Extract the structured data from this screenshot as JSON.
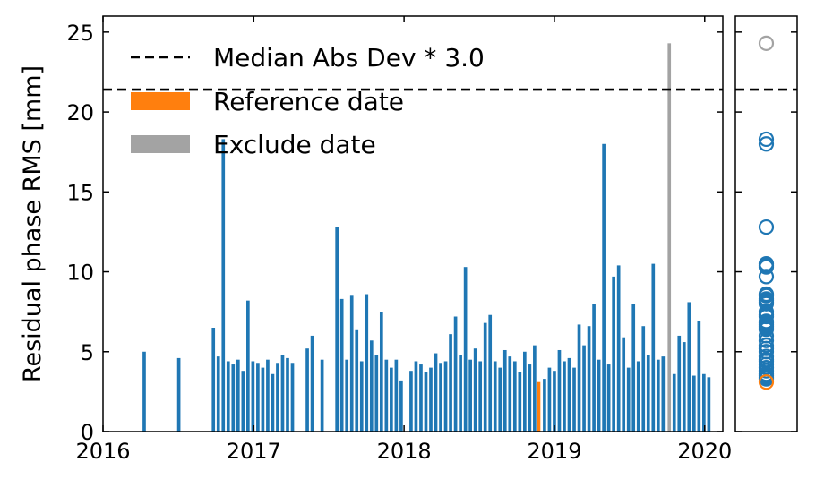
{
  "chart_data": [
    {
      "type": "bar",
      "ylabel": "Residual phase RMS [mm]",
      "xlabel": "",
      "x_range": [
        "2016-01-01",
        "2020-02-14"
      ],
      "ylim": [
        0,
        26
      ],
      "xticks": [
        "2016",
        "2017",
        "2018",
        "2019",
        "2020"
      ],
      "yticks": [
        "0",
        "5",
        "10",
        "15",
        "20",
        "25"
      ],
      "legend_position": "top-left",
      "threshold": {
        "label": "Median Abs Dev * 3.0",
        "value": 21.4
      },
      "colors": {
        "normal": "#1f77b4",
        "reference": "#ff7f0e",
        "exclude": "#a3a3a3",
        "threshold": "#000000"
      },
      "series": [
        {
          "name": "Reference date",
          "color": "#ff7f0e",
          "dates": [
            "2018-11-24"
          ],
          "values": [
            3.1
          ]
        },
        {
          "name": "Exclude date",
          "color": "#a3a3a3",
          "dates": [
            "2019-10-07"
          ],
          "values": [
            24.3
          ]
        }
      ],
      "bars": {
        "dates": [
          "2016-04-10",
          "2016-07-03",
          "2016-09-25",
          "2016-10-07",
          "2016-10-19",
          "2016-10-31",
          "2016-11-12",
          "2016-11-24",
          "2016-12-06",
          "2016-12-18",
          "2016-12-30",
          "2017-01-11",
          "2017-01-23",
          "2017-02-04",
          "2017-02-16",
          "2017-02-28",
          "2017-03-12",
          "2017-03-24",
          "2017-04-05",
          "2017-05-11",
          "2017-05-23",
          "2017-06-16",
          "2017-07-22",
          "2017-08-03",
          "2017-08-15",
          "2017-08-27",
          "2017-09-08",
          "2017-09-20",
          "2017-10-02",
          "2017-10-14",
          "2017-10-26",
          "2017-11-07",
          "2017-11-19",
          "2017-12-01",
          "2017-12-13",
          "2017-12-25",
          "2018-01-18",
          "2018-01-30",
          "2018-02-11",
          "2018-02-23",
          "2018-03-07",
          "2018-03-19",
          "2018-03-31",
          "2018-04-12",
          "2018-04-24",
          "2018-05-06",
          "2018-05-18",
          "2018-05-30",
          "2018-06-11",
          "2018-06-23",
          "2018-07-05",
          "2018-07-17",
          "2018-07-29",
          "2018-08-10",
          "2018-08-22",
          "2018-09-03",
          "2018-09-15",
          "2018-09-27",
          "2018-10-09",
          "2018-10-21",
          "2018-11-02",
          "2018-11-14",
          "2018-12-08",
          "2018-12-20",
          "2019-01-01",
          "2019-01-13",
          "2019-01-25",
          "2019-02-06",
          "2019-02-18",
          "2019-03-02",
          "2019-03-14",
          "2019-03-26",
          "2019-04-07",
          "2019-04-19",
          "2019-05-01",
          "2019-05-13",
          "2019-05-25",
          "2019-06-06",
          "2019-06-18",
          "2019-06-30",
          "2019-07-12",
          "2019-07-24",
          "2019-08-05",
          "2019-08-17",
          "2019-08-29",
          "2019-09-10",
          "2019-09-22",
          "2019-10-19",
          "2019-10-31",
          "2019-11-12",
          "2019-11-24",
          "2019-12-06",
          "2019-12-18",
          "2019-12-30",
          "2020-01-11"
        ],
        "values": [
          5.0,
          4.6,
          6.5,
          4.7,
          18.3,
          4.4,
          4.2,
          4.5,
          3.8,
          8.2,
          4.4,
          4.3,
          4.0,
          4.5,
          3.6,
          4.3,
          4.8,
          4.6,
          4.3,
          5.2,
          6.0,
          4.5,
          12.8,
          8.3,
          4.5,
          8.5,
          6.4,
          4.4,
          8.6,
          5.7,
          4.8,
          7.5,
          4.5,
          4.0,
          4.5,
          3.2,
          3.8,
          4.4,
          4.2,
          3.7,
          4.0,
          4.9,
          4.3,
          4.4,
          6.1,
          7.2,
          4.8,
          10.3,
          4.5,
          5.2,
          4.4,
          6.8,
          7.3,
          4.4,
          4.0,
          5.1,
          4.7,
          4.4,
          3.7,
          5.0,
          4.2,
          5.4,
          3.3,
          4.0,
          3.8,
          5.1,
          4.4,
          4.6,
          4.0,
          6.7,
          5.4,
          6.6,
          8.0,
          4.5,
          18.0,
          4.2,
          9.7,
          10.4,
          5.9,
          4.0,
          8.0,
          4.4,
          6.6,
          4.8,
          10.5,
          4.5,
          4.7,
          3.6,
          6.0,
          5.6,
          8.1,
          3.5,
          6.9,
          3.6,
          3.4
        ]
      }
    },
    {
      "type": "scatter",
      "x_range": [
        0,
        1
      ],
      "ylim": [
        0,
        26
      ],
      "threshold": {
        "value": 21.4
      },
      "series": [
        {
          "name": "Exclude date",
          "color": "#a3a3a3",
          "values": [
            24.3
          ]
        },
        {
          "name": "Reference date",
          "color": "#ff7f0e",
          "values": [
            3.1
          ]
        }
      ],
      "points": {
        "color": "#1f77b4",
        "values": [
          18.3,
          18.0,
          12.8,
          10.5,
          10.4,
          10.3,
          9.7,
          8.6,
          8.5,
          8.3,
          8.2,
          8.1,
          8.0,
          7.5,
          7.3,
          7.2,
          6.9,
          6.8,
          6.7,
          6.6,
          6.5,
          6.4,
          6.0,
          5.7,
          5.4,
          5.2,
          5.0,
          4.7,
          4.5,
          4.4,
          4.2,
          4.0,
          3.8,
          3.6,
          3.5,
          3.4,
          3.3
        ]
      }
    }
  ],
  "legend": {
    "items": [
      {
        "label": "Median Abs Dev * 3.0"
      },
      {
        "label": "Reference date"
      },
      {
        "label": "Exclude date"
      }
    ]
  }
}
